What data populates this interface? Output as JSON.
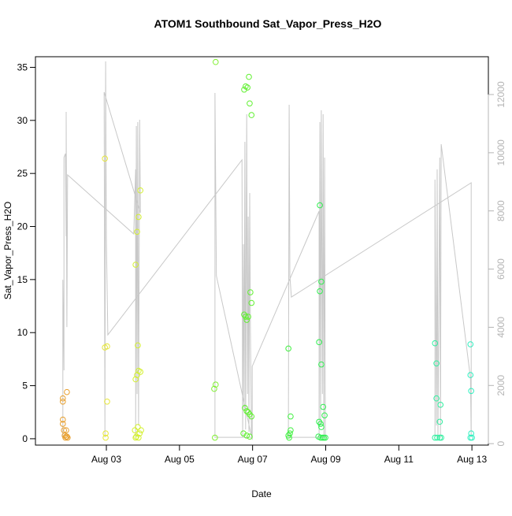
{
  "chart_data": {
    "type": "scatter",
    "title": "ATOM1 Southbound Sat_Vapor_Press_H2O",
    "xlabel": "Date",
    "ylabel": "Sat_Vapor_Press_H2O",
    "xlim": [
      1.06,
      13.45
    ],
    "xticks": [
      {
        "value": 3,
        "label": "Aug 03"
      },
      {
        "value": 5,
        "label": "Aug 05"
      },
      {
        "value": 7,
        "label": "Aug 07"
      },
      {
        "value": 9,
        "label": "Aug 09"
      },
      {
        "value": 11,
        "label": "Aug 11"
      },
      {
        "value": 13,
        "label": "Aug 13"
      }
    ],
    "ylim": [
      -0.6,
      36.0
    ],
    "yticks": [
      0,
      5,
      10,
      15,
      20,
      25,
      30,
      35
    ],
    "y2lim": [
      -50,
      13300
    ],
    "y2ticks": [
      0,
      2000,
      4000,
      6000,
      8000,
      10000,
      12000
    ],
    "y2color": "#b4b4b4",
    "points": {
      "x": [
        1.81,
        1.81,
        1.81,
        1.81,
        1.84,
        1.86,
        1.88,
        1.9,
        1.9,
        1.92,
        1.94,
        1.92,
        2.96,
        2.96,
        3.02,
        3.02,
        2.98,
        2.98,
        3.8,
        3.84,
        3.88,
        3.93,
        3.86,
        3.88,
        3.93,
        3.8,
        3.84,
        3.78,
        3.82,
        3.86,
        3.91,
        3.95,
        3.8,
        3.88,
        5.99,
        5.95,
        5.99,
        5.97,
        6.77,
        6.81,
        6.86,
        6.9,
        6.92,
        6.97,
        6.77,
        6.81,
        6.84,
        6.88,
        6.94,
        6.97,
        6.79,
        6.84,
        6.88,
        6.92,
        6.97,
        6.75,
        6.84,
        6.92,
        7.98,
        8.04,
        8.04,
        8.02,
        8.0,
        7.98,
        8.84,
        8.84,
        8.88,
        8.82,
        8.88,
        8.93,
        8.97,
        8.82,
        8.86,
        8.88,
        8.8,
        8.86,
        8.91,
        8.95,
        8.99,
        11.99,
        12.03,
        12.03,
        12.14,
        12.12,
        11.99,
        12.05,
        12.12,
        12.16,
        12.96,
        12.96,
        12.98,
        12.98,
        12.96,
        13.0
      ],
      "values": [
        3.8,
        3.5,
        1.8,
        1.4,
        0.8,
        0.3,
        0.1,
        0.8,
        0.2,
        4.4,
        0.1,
        0.2,
        26.4,
        8.6,
        8.7,
        3.5,
        0.5,
        0.1,
        16.4,
        19.5,
        20.9,
        23.4,
        8.8,
        6.4,
        6.3,
        5.6,
        6.0,
        0.8,
        0.2,
        1.1,
        0.5,
        0.8,
        0.1,
        0.1,
        35.5,
        4.7,
        5.1,
        0.1,
        32.9,
        33.2,
        33.1,
        34.1,
        31.6,
        30.5,
        11.7,
        11.5,
        11.2,
        11.5,
        13.8,
        12.8,
        2.9,
        2.6,
        2.5,
        2.3,
        2.1,
        0.5,
        0.3,
        0.2,
        8.5,
        2.1,
        0.8,
        0.5,
        0.1,
        0.3,
        22.0,
        13.9,
        14.8,
        9.1,
        7.0,
        3.0,
        2.2,
        1.6,
        1.4,
        1.1,
        0.2,
        0.1,
        0.1,
        0.1,
        0.1,
        9.0,
        7.1,
        3.8,
        3.2,
        1.6,
        0.1,
        0.1,
        0.1,
        0.1,
        8.9,
        6.0,
        4.5,
        0.5,
        0.1,
        0.1
      ],
      "colors": [
        "#e8a030",
        "#e8a030",
        "#e8a030",
        "#e8a030",
        "#e8a030",
        "#e8a030",
        "#e8a030",
        "#e8a030",
        "#e8a030",
        "#e8a030",
        "#e8a030",
        "#e8a030",
        "#e6e63a",
        "#e6e63a",
        "#e6e63a",
        "#e6e63a",
        "#e6e63a",
        "#e6e63a",
        "#d4f030",
        "#d4f030",
        "#d4f030",
        "#d4f030",
        "#d4f030",
        "#d4f030",
        "#d4f030",
        "#d4f030",
        "#d4f030",
        "#d4f030",
        "#d4f030",
        "#d4f030",
        "#d4f030",
        "#d4f030",
        "#d4f030",
        "#d4f030",
        "#80f030",
        "#80f030",
        "#80f030",
        "#80f030",
        "#60f030",
        "#60f030",
        "#60f030",
        "#60f030",
        "#60f030",
        "#60f030",
        "#60f030",
        "#60f030",
        "#60f030",
        "#60f030",
        "#60f030",
        "#60f030",
        "#60f030",
        "#60f030",
        "#60f030",
        "#60f030",
        "#60f030",
        "#60f030",
        "#60f030",
        "#60f030",
        "#40f040",
        "#40f040",
        "#40f040",
        "#40f040",
        "#40f040",
        "#40f040",
        "#30f050",
        "#30f050",
        "#30f050",
        "#30f050",
        "#30f050",
        "#30f050",
        "#30f050",
        "#30f050",
        "#30f050",
        "#30f050",
        "#30f050",
        "#30f050",
        "#30f050",
        "#30f050",
        "#30f050",
        "#30f0a0",
        "#30f0a0",
        "#30f0a0",
        "#30f0a0",
        "#30f0a0",
        "#30f0a0",
        "#30f0a0",
        "#30f0a0",
        "#30f0a0",
        "#30f0c0",
        "#30f0c0",
        "#30f0c0",
        "#30f0c0",
        "#30f0c0",
        "#30f0c0"
      ]
    },
    "track": {
      "axis": "y2",
      "color": "#c8c8c8",
      "x": [
        1.81,
        1.81,
        1.84,
        1.84,
        1.88,
        1.9,
        1.9,
        1.92,
        1.94,
        3.75,
        3.8,
        3.8,
        3.82,
        3.84,
        3.86,
        3.88,
        3.91,
        3.93,
        2.94,
        2.96,
        2.98,
        3.0,
        3.04,
        6.71,
        6.73,
        6.75,
        6.77,
        6.79,
        6.81,
        6.84,
        6.86,
        6.88,
        6.9,
        6.92,
        6.94,
        6.97,
        5.97,
        5.97,
        6.01,
        6.99,
        6.99,
        8.82,
        8.82,
        8.84,
        8.86,
        8.88,
        8.91,
        8.93,
        8.95,
        8.97,
        8.99,
        7.98,
        8.0,
        8.02,
        8.06,
        12.98,
        12.98,
        12.96,
        12.16,
        12.14,
        12.12,
        12.07,
        12.05,
        12.03,
        11.99,
        11.99
      ],
      "values": [
        217,
        5635,
        2519,
        9834,
        9969,
        7125,
        11405,
        4009,
        9238,
        7206,
        9427,
        217,
        10917,
        1707,
        11053,
        623,
        11134,
        7937,
        12082,
        217,
        13139,
        7125,
        3738,
        9752,
        217,
        6854,
        1165,
        10375,
        488,
        11324,
        1707,
        7802,
        406,
        8615,
        3874,
        217,
        217,
        12055,
        5770,
        135,
        2655,
        7992,
        217,
        11053,
        623,
        11459,
        1707,
        11324,
        217,
        9834,
        217,
        217,
        11649,
        5770,
        5039,
        8967,
        217,
        2248,
        10294,
        217,
        9834,
        217,
        9427,
        623,
        9075,
        217
      ]
    }
  }
}
